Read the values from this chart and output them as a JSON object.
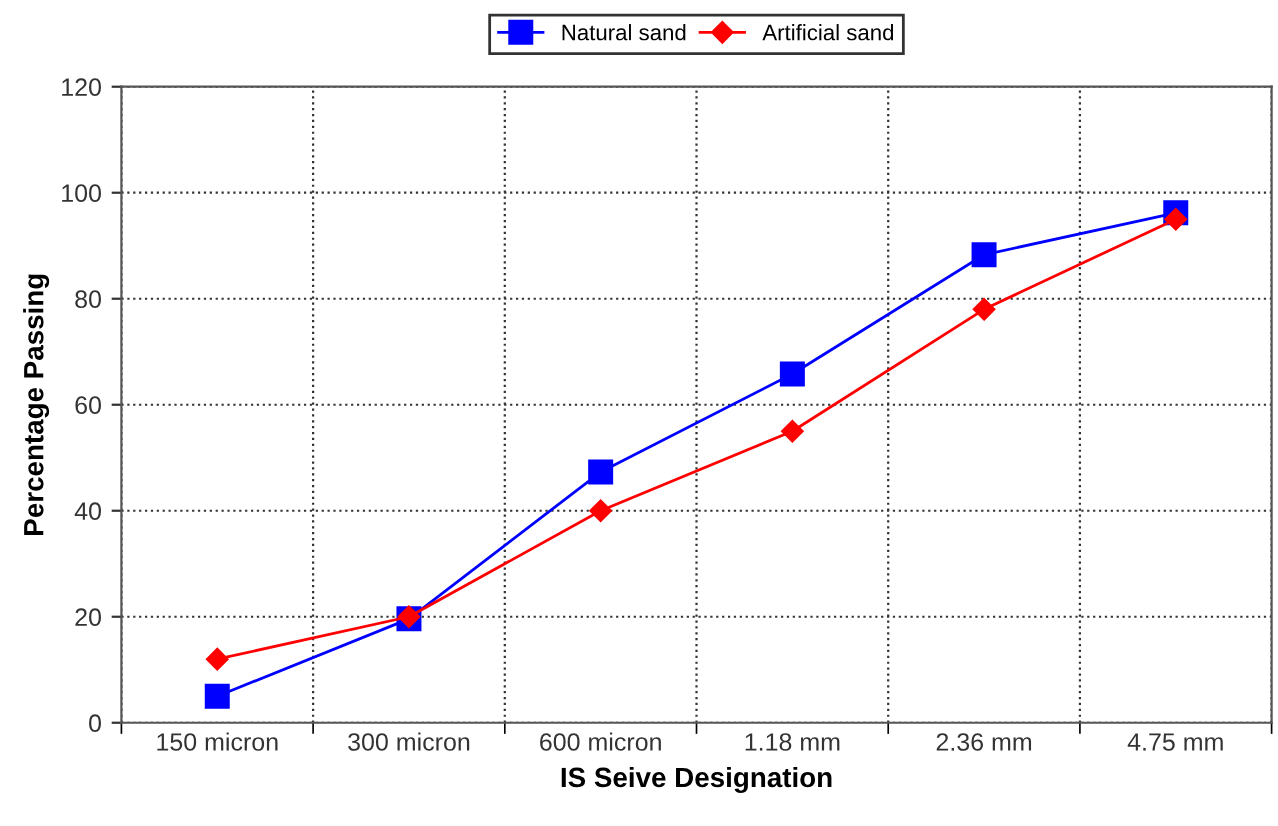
{
  "chart_data": {
    "type": "line",
    "xlabel": "IS Seive Designation",
    "ylabel": "Percentage Passing",
    "categories": [
      "150 micron",
      "300 micron",
      "600 micron",
      "1.18 mm",
      "2.36 mm",
      "4.75 mm"
    ],
    "series": [
      {
        "name": "Natural sand",
        "color": "#0000ff",
        "marker": "square",
        "values": [
          5,
          19.6,
          47.3,
          65.8,
          88.3,
          96.2
        ]
      },
      {
        "name": "Artificial sand",
        "color": "#ff0000",
        "marker": "diamond",
        "values": [
          12,
          20,
          40,
          55,
          78,
          95
        ]
      }
    ],
    "ylim": [
      0,
      120
    ],
    "yticks": [
      0,
      20,
      40,
      60,
      80,
      100,
      120
    ],
    "grid": true,
    "legend": "top"
  }
}
